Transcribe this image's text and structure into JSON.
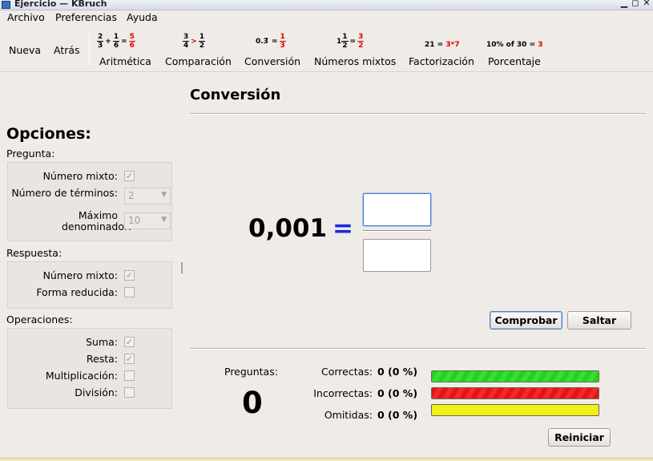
{
  "window": {
    "title": "Ejercicio — KBruch",
    "controls": [
      "▁",
      "◻",
      "✕"
    ]
  },
  "menu": [
    "Archivo",
    "Preferencias",
    "Ayuda"
  ],
  "toolbar": {
    "nueva": "Nueva",
    "atras": "Atrás",
    "tools": [
      {
        "label": "Aritmética"
      },
      {
        "label": "Comparación"
      },
      {
        "label": "Conversión"
      },
      {
        "label": "Números mixtos"
      },
      {
        "label": "Factorización"
      },
      {
        "label": "Porcentaje"
      }
    ],
    "icons": {
      "arith": {
        "a": [
          "2",
          "3"
        ],
        "plus": "+",
        "b": [
          "1",
          "6"
        ],
        "eq": "=",
        "r": [
          "5",
          "6"
        ]
      },
      "comp": {
        "a": [
          "3",
          "4"
        ],
        "gt": ">",
        "b": [
          "1",
          "2"
        ]
      },
      "conv": {
        "dec": "0.3̄",
        "eq": "=",
        "r": [
          "1",
          "3"
        ]
      },
      "mixed": {
        "whole": "1",
        "a": [
          "1",
          "2"
        ],
        "eq": "=",
        "r": [
          "3",
          "2"
        ]
      },
      "factor": {
        "n": "21",
        "eq": "=",
        "r": "3*7"
      },
      "percent": {
        "text": "10% of 30 =",
        "r": "3"
      }
    }
  },
  "options": {
    "title": "Opciones:",
    "pregunta": {
      "label": "Pregunta:",
      "mixed_label": "Número mixto:",
      "mixed_checked": true,
      "terms_label": "Número de términos:",
      "terms_value": "2",
      "maxden_label": "Máximo denominador:",
      "maxden_value": "10"
    },
    "respuesta": {
      "label": "Respuesta:",
      "mixed_label": "Número mixto:",
      "mixed_checked": true,
      "reduced_label": "Forma reducida:",
      "reduced_checked": false
    },
    "operaciones": {
      "label": "Operaciones:",
      "suma_label": "Suma:",
      "suma_checked": true,
      "resta_label": "Resta:",
      "resta_checked": true,
      "mult_label": "Multiplicación:",
      "mult_checked": false,
      "div_label": "División:",
      "div_checked": false
    }
  },
  "exercise": {
    "title": "Conversión",
    "question": "0,001",
    "equals": "=",
    "check_button": "Comprobar",
    "skip_button": "Saltar"
  },
  "stats": {
    "questions_label": "Preguntas:",
    "questions_count": "0",
    "correct_label": "Correctas:",
    "correct_value": "0 (0 %)",
    "incorrect_label": "Incorrectas:",
    "incorrect_value": "0 (0 %)",
    "skipped_label": "Omitidas:",
    "skipped_value": "0 (0 %)",
    "reset_button": "Reiniciar",
    "colors": {
      "correct": "#22d21f",
      "incorrect": "#e51313",
      "skipped": "#f0f017"
    }
  }
}
